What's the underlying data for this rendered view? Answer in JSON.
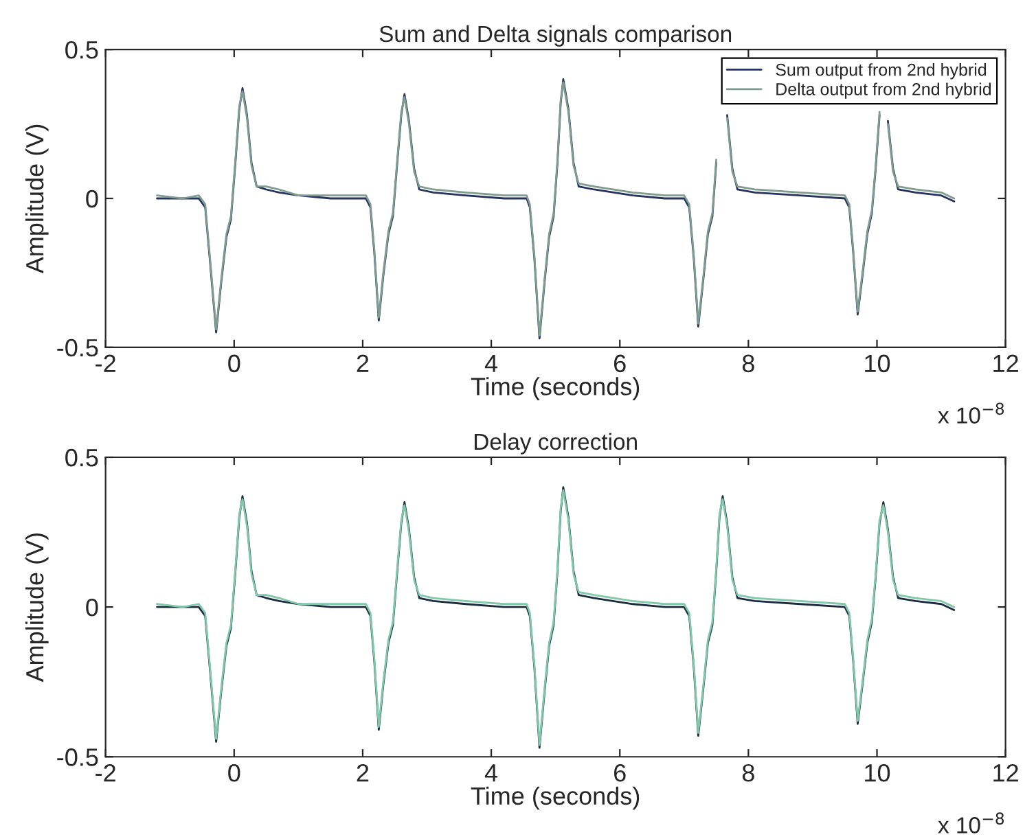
{
  "chart_data": [
    {
      "type": "line",
      "title": "Sum and Delta signals comparison",
      "xlabel": "Time (seconds)",
      "ylabel": "Amplitude (V)",
      "annotations": [
        "x 10$^{−8}$"
      ],
      "xlim": [
        -2,
        12
      ],
      "xticks": [
        -2,
        0,
        2,
        4,
        6,
        8,
        10,
        12
      ],
      "ylim": [
        -0.5,
        0.5
      ],
      "yticks": [
        -0.5,
        0,
        0.5
      ],
      "grid": false,
      "legend": "top right",
      "marker": "none",
      "line_style": "solid",
      "x": [
        -1.2,
        -0.8,
        -0.55,
        -0.45,
        -0.38,
        -0.28,
        -0.2,
        -0.12,
        -0.05,
        0.02,
        0.08,
        0.13,
        0.2,
        0.27,
        0.35,
        0.5,
        0.7,
        1.0,
        1.5,
        2.05,
        2.12,
        2.18,
        2.25,
        2.32,
        2.4,
        2.47,
        2.53,
        2.6,
        2.65,
        2.72,
        2.8,
        2.88,
        3.1,
        3.6,
        4.2,
        4.55,
        4.6,
        4.67,
        4.75,
        4.83,
        4.9,
        4.97,
        5.03,
        5.08,
        5.12,
        5.2,
        5.28,
        5.36,
        5.6,
        6.2,
        6.7,
        7.0,
        7.08,
        7.15,
        7.22,
        7.3,
        7.37,
        7.44,
        7.5,
        7.55,
        7.6,
        7.67,
        7.75,
        7.83,
        8.1,
        8.8,
        9.5,
        9.57,
        9.63,
        9.7,
        9.78,
        9.85,
        9.92,
        9.98,
        10.04,
        10.1,
        10.17,
        10.25,
        10.33,
        10.6,
        11.0,
        11.2
      ],
      "series": [
        {
          "name": "Sum output from 2nd hybrid",
          "color": "#27325e",
          "values": [
            0.0,
            0.0,
            0.0,
            -0.03,
            -0.2,
            -0.45,
            -0.28,
            -0.13,
            -0.07,
            0.12,
            0.3,
            0.37,
            0.28,
            0.12,
            0.04,
            0.03,
            0.02,
            0.01,
            0.0,
            0.0,
            -0.03,
            -0.18,
            -0.41,
            -0.26,
            -0.12,
            -0.06,
            0.1,
            0.28,
            0.35,
            0.26,
            0.1,
            0.03,
            0.02,
            0.01,
            0.0,
            0.0,
            -0.03,
            -0.2,
            -0.47,
            -0.28,
            -0.13,
            -0.06,
            0.12,
            0.32,
            0.4,
            0.3,
            0.12,
            0.04,
            0.03,
            0.01,
            0.0,
            0.0,
            -0.03,
            -0.2,
            -0.43,
            -0.27,
            -0.12,
            -0.06,
            0.12,
            null,
            null,
            0.28,
            0.1,
            0.03,
            0.02,
            0.01,
            0.0,
            -0.03,
            -0.18,
            -0.39,
            -0.25,
            -0.12,
            -0.05,
            0.1,
            0.28,
            null,
            0.26,
            0.1,
            0.03,
            0.02,
            0.01,
            -0.01
          ]
        },
        {
          "name": "Delta output from 2nd hybrid",
          "color": "#7f9c90",
          "values": [
            0.01,
            0.0,
            0.01,
            -0.02,
            -0.19,
            -0.44,
            -0.27,
            -0.12,
            -0.06,
            0.13,
            0.31,
            0.36,
            0.27,
            0.11,
            0.04,
            0.04,
            0.03,
            0.01,
            0.01,
            0.01,
            -0.02,
            -0.17,
            -0.4,
            -0.25,
            -0.11,
            -0.05,
            0.11,
            0.29,
            0.34,
            0.25,
            0.09,
            0.04,
            0.03,
            0.02,
            0.01,
            0.01,
            -0.02,
            -0.19,
            -0.46,
            -0.27,
            -0.12,
            -0.05,
            0.13,
            0.33,
            0.39,
            0.29,
            0.11,
            0.05,
            0.04,
            0.02,
            0.01,
            0.01,
            -0.02,
            -0.19,
            -0.42,
            -0.26,
            -0.11,
            -0.05,
            0.13,
            null,
            null,
            0.27,
            0.09,
            0.04,
            0.03,
            0.02,
            0.01,
            -0.02,
            -0.17,
            -0.38,
            -0.24,
            -0.11,
            -0.04,
            0.11,
            0.29,
            null,
            0.25,
            0.09,
            0.04,
            0.03,
            0.02,
            0.0
          ]
        }
      ]
    },
    {
      "type": "line",
      "title": "Delay correction",
      "xlabel": "Time (seconds)",
      "ylabel": "Amplitude (V)",
      "annotations": [
        "x 10$^{−8}$"
      ],
      "xlim": [
        -2,
        12
      ],
      "xticks": [
        -2,
        0,
        2,
        4,
        6,
        8,
        10,
        12
      ],
      "ylim": [
        -0.5,
        0.5
      ],
      "yticks": [
        -0.5,
        0,
        0.5
      ],
      "grid": false,
      "marker": "none",
      "line_style": "solid",
      "x": [
        -1.2,
        -0.8,
        -0.55,
        -0.45,
        -0.38,
        -0.28,
        -0.2,
        -0.12,
        -0.05,
        0.02,
        0.08,
        0.13,
        0.2,
        0.27,
        0.35,
        0.5,
        0.7,
        1.0,
        1.5,
        2.05,
        2.12,
        2.18,
        2.25,
        2.32,
        2.4,
        2.47,
        2.53,
        2.6,
        2.65,
        2.72,
        2.8,
        2.88,
        3.1,
        3.6,
        4.2,
        4.55,
        4.6,
        4.67,
        4.75,
        4.83,
        4.9,
        4.97,
        5.03,
        5.08,
        5.12,
        5.2,
        5.28,
        5.36,
        5.6,
        6.2,
        6.7,
        7.0,
        7.08,
        7.15,
        7.22,
        7.3,
        7.37,
        7.44,
        7.5,
        7.55,
        7.6,
        7.67,
        7.75,
        7.83,
        8.1,
        8.8,
        9.5,
        9.57,
        9.63,
        9.7,
        9.78,
        9.85,
        9.92,
        9.98,
        10.04,
        10.1,
        10.17,
        10.25,
        10.33,
        10.6,
        11.0,
        11.2
      ],
      "series": [
        {
          "color": "#1c2c40",
          "values": [
            0.0,
            0.0,
            0.0,
            -0.03,
            -0.2,
            -0.45,
            -0.28,
            -0.13,
            -0.07,
            0.12,
            0.3,
            0.37,
            0.28,
            0.12,
            0.04,
            0.03,
            0.02,
            0.01,
            0.0,
            0.0,
            -0.03,
            -0.18,
            -0.41,
            -0.26,
            -0.12,
            -0.06,
            0.1,
            0.28,
            0.35,
            0.26,
            0.1,
            0.03,
            0.02,
            0.01,
            0.0,
            0.0,
            -0.03,
            -0.2,
            -0.47,
            -0.28,
            -0.13,
            -0.06,
            0.12,
            0.32,
            0.4,
            0.3,
            0.12,
            0.04,
            0.03,
            0.01,
            0.0,
            0.0,
            -0.03,
            -0.2,
            -0.43,
            -0.27,
            -0.12,
            -0.06,
            0.12,
            0.3,
            0.37,
            0.28,
            0.1,
            0.03,
            0.02,
            0.01,
            0.0,
            -0.03,
            -0.18,
            -0.39,
            -0.25,
            -0.12,
            -0.05,
            0.1,
            0.28,
            0.35,
            0.26,
            0.1,
            0.03,
            0.02,
            0.01,
            -0.01
          ]
        },
        {
          "color": "#7fc8a9",
          "values": [
            0.01,
            0.0,
            0.01,
            -0.02,
            -0.19,
            -0.44,
            -0.27,
            -0.12,
            -0.06,
            0.13,
            0.31,
            0.36,
            0.27,
            0.11,
            0.04,
            0.04,
            0.03,
            0.01,
            0.01,
            0.01,
            -0.02,
            -0.17,
            -0.4,
            -0.25,
            -0.11,
            -0.05,
            0.11,
            0.29,
            0.34,
            0.25,
            0.09,
            0.04,
            0.03,
            0.02,
            0.01,
            0.01,
            -0.02,
            -0.19,
            -0.46,
            -0.27,
            -0.12,
            -0.05,
            0.13,
            0.33,
            0.39,
            0.29,
            0.11,
            0.05,
            0.04,
            0.02,
            0.01,
            0.01,
            -0.02,
            -0.19,
            -0.42,
            -0.26,
            -0.11,
            -0.05,
            0.13,
            0.31,
            0.36,
            0.27,
            0.09,
            0.04,
            0.03,
            0.02,
            0.01,
            -0.02,
            -0.17,
            -0.38,
            -0.24,
            -0.11,
            -0.04,
            0.11,
            0.29,
            0.34,
            0.25,
            0.09,
            0.04,
            0.03,
            0.02,
            0.0
          ]
        }
      ]
    }
  ]
}
